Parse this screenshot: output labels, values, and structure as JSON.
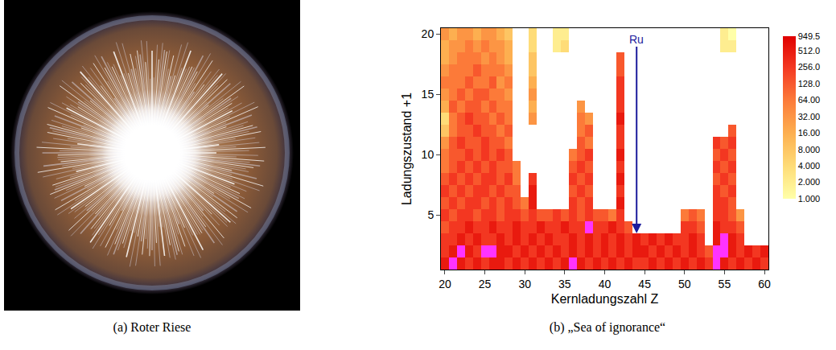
{
  "photo": {
    "caption": "(a) Roter Riese"
  },
  "chart_data": {
    "type": "heatmap",
    "caption": "(b) „Sea of ignorance“",
    "x_label": "Kernladungszahl Z",
    "y_label": "Ladungszustand +1",
    "x": [
      20,
      21,
      22,
      23,
      24,
      25,
      26,
      27,
      28,
      29,
      30,
      31,
      32,
      33,
      34,
      35,
      36,
      37,
      38,
      39,
      40,
      41,
      42,
      43,
      44,
      45,
      46,
      47,
      48,
      49,
      50,
      51,
      52,
      53,
      54,
      55,
      56,
      57,
      58,
      59,
      60
    ],
    "y": [
      1,
      2,
      3,
      4,
      5,
      6,
      7,
      8,
      9,
      10,
      11,
      12,
      13,
      14,
      15,
      16,
      17,
      18,
      19,
      20
    ],
    "cells": [
      [
        512,
        949.5,
        512,
        256,
        512,
        256,
        512,
        512,
        256,
        512,
        256,
        512,
        256,
        512,
        256,
        512,
        949.5,
        512,
        256,
        512,
        256,
        512,
        256,
        512,
        256,
        256,
        512,
        256,
        512,
        256,
        512,
        256,
        512,
        256,
        949.5,
        512,
        256,
        512,
        256,
        512,
        256
      ],
      [
        256,
        512,
        949.5,
        512,
        256,
        949.5,
        949.5,
        512,
        512,
        256,
        512,
        256,
        512,
        256,
        512,
        256,
        512,
        256,
        512,
        256,
        512,
        256,
        512,
        256,
        512,
        512,
        256,
        512,
        256,
        512,
        256,
        512,
        256,
        128,
        949.5,
        949.5,
        512,
        256,
        512,
        256,
        512
      ],
      [
        256,
        256,
        512,
        256,
        512,
        256,
        256,
        512,
        256,
        512,
        256,
        512,
        256,
        512,
        256,
        256,
        512,
        256,
        512,
        256,
        512,
        256,
        512,
        256,
        512,
        256,
        512,
        256,
        512,
        256,
        256,
        512,
        256,
        null,
        512,
        949.5,
        512,
        256,
        null,
        null,
        null
      ],
      [
        128,
        256,
        256,
        512,
        256,
        256,
        512,
        256,
        256,
        512,
        256,
        256,
        512,
        256,
        256,
        512,
        256,
        256,
        949.5,
        256,
        256,
        512,
        256,
        128,
        null,
        null,
        null,
        null,
        null,
        null,
        256,
        256,
        128,
        null,
        512,
        256,
        256,
        128,
        null,
        null,
        null
      ],
      [
        256,
        128,
        256,
        256,
        128,
        256,
        256,
        128,
        256,
        256,
        128,
        256,
        128,
        128,
        256,
        128,
        256,
        128,
        256,
        128,
        128,
        64,
        256,
        null,
        null,
        null,
        null,
        null,
        null,
        null,
        64,
        128,
        64,
        null,
        256,
        256,
        128,
        32,
        null,
        null,
        null
      ],
      [
        128,
        256,
        128,
        256,
        256,
        128,
        256,
        128,
        256,
        128,
        64,
        512,
        null,
        null,
        null,
        null,
        256,
        128,
        256,
        null,
        null,
        null,
        512,
        null,
        null,
        null,
        null,
        null,
        null,
        null,
        null,
        null,
        null,
        null,
        256,
        256,
        128,
        null,
        null,
        null,
        null
      ],
      [
        256,
        128,
        256,
        128,
        256,
        256,
        128,
        256,
        128,
        128,
        null,
        512,
        null,
        null,
        null,
        null,
        128,
        256,
        128,
        null,
        null,
        null,
        256,
        null,
        null,
        null,
        null,
        null,
        null,
        null,
        null,
        null,
        null,
        null,
        256,
        128,
        256,
        null,
        null,
        null,
        null
      ],
      [
        128,
        256,
        128,
        256,
        128,
        256,
        256,
        128,
        256,
        64,
        null,
        256,
        null,
        null,
        null,
        null,
        256,
        128,
        256,
        null,
        null,
        null,
        512,
        null,
        null,
        null,
        null,
        null,
        null,
        null,
        null,
        null,
        null,
        null,
        128,
        256,
        128,
        null,
        null,
        null,
        null
      ],
      [
        64,
        128,
        256,
        128,
        256,
        128,
        256,
        128,
        128,
        64,
        null,
        null,
        null,
        null,
        null,
        null,
        128,
        256,
        128,
        null,
        null,
        null,
        256,
        null,
        null,
        null,
        null,
        null,
        null,
        null,
        null,
        null,
        null,
        null,
        256,
        128,
        256,
        null,
        null,
        null,
        null
      ],
      [
        64,
        128,
        128,
        256,
        128,
        256,
        128,
        256,
        128,
        null,
        null,
        null,
        null,
        null,
        null,
        null,
        64,
        128,
        256,
        null,
        null,
        null,
        512,
        null,
        null,
        null,
        null,
        null,
        null,
        null,
        null,
        null,
        null,
        null,
        128,
        256,
        128,
        null,
        null,
        null,
        null
      ],
      [
        32,
        128,
        256,
        128,
        128,
        256,
        128,
        128,
        64,
        null,
        null,
        null,
        null,
        null,
        null,
        null,
        null,
        128,
        64,
        null,
        null,
        null,
        256,
        null,
        null,
        null,
        null,
        null,
        null,
        null,
        null,
        null,
        null,
        null,
        256,
        128,
        256,
        null,
        null,
        null,
        null
      ],
      [
        8,
        64,
        128,
        128,
        256,
        128,
        128,
        64,
        128,
        null,
        null,
        null,
        null,
        null,
        null,
        null,
        null,
        64,
        128,
        null,
        null,
        null,
        256,
        null,
        null,
        null,
        null,
        null,
        null,
        null,
        null,
        null,
        null,
        null,
        null,
        null,
        128,
        null,
        null,
        null,
        null
      ],
      [
        4,
        64,
        128,
        256,
        128,
        128,
        64,
        128,
        64,
        null,
        null,
        32,
        null,
        null,
        null,
        null,
        null,
        64,
        32,
        null,
        null,
        null,
        512,
        null,
        null,
        null,
        null,
        null,
        null,
        null,
        null,
        null,
        null,
        null,
        null,
        null,
        null,
        null,
        null,
        null,
        null
      ],
      [
        16,
        128,
        64,
        128,
        128,
        64,
        128,
        64,
        64,
        null,
        null,
        16,
        null,
        null,
        null,
        null,
        null,
        32,
        null,
        null,
        null,
        null,
        256,
        null,
        null,
        null,
        null,
        null,
        null,
        null,
        null,
        null,
        null,
        null,
        null,
        null,
        null,
        null,
        null,
        null,
        null
      ],
      [
        32,
        64,
        128,
        64,
        128,
        128,
        64,
        64,
        32,
        null,
        null,
        32,
        null,
        null,
        null,
        null,
        null,
        null,
        null,
        null,
        null,
        null,
        256,
        null,
        null,
        null,
        null,
        null,
        null,
        null,
        null,
        null,
        null,
        null,
        null,
        null,
        null,
        null,
        null,
        null,
        null
      ],
      [
        64,
        64,
        64,
        128,
        64,
        64,
        128,
        32,
        64,
        null,
        null,
        16,
        null,
        null,
        null,
        null,
        null,
        null,
        null,
        null,
        null,
        null,
        256,
        null,
        null,
        null,
        null,
        null,
        null,
        null,
        null,
        null,
        null,
        null,
        null,
        null,
        null,
        null,
        null,
        null,
        null
      ],
      [
        32,
        64,
        64,
        64,
        128,
        64,
        64,
        64,
        32,
        null,
        null,
        8,
        null,
        null,
        null,
        null,
        null,
        null,
        null,
        null,
        null,
        null,
        128,
        null,
        null,
        null,
        null,
        null,
        null,
        null,
        null,
        null,
        null,
        null,
        null,
        null,
        null,
        null,
        null,
        null,
        null
      ],
      [
        16,
        32,
        64,
        64,
        64,
        32,
        64,
        32,
        16,
        null,
        null,
        8,
        null,
        null,
        null,
        null,
        null,
        null,
        null,
        null,
        null,
        null,
        128,
        null,
        null,
        null,
        null,
        null,
        null,
        null,
        null,
        null,
        null,
        null,
        null,
        null,
        null,
        null,
        null,
        null,
        null
      ],
      [
        16,
        32,
        32,
        64,
        32,
        64,
        32,
        32,
        16,
        null,
        null,
        4,
        null,
        null,
        2,
        4,
        null,
        null,
        null,
        null,
        null,
        null,
        null,
        null,
        null,
        null,
        null,
        null,
        null,
        null,
        null,
        null,
        null,
        null,
        null,
        2,
        2,
        null,
        null,
        null,
        null
      ],
      [
        32,
        16,
        32,
        32,
        16,
        32,
        32,
        16,
        8,
        null,
        null,
        4,
        null,
        null,
        2,
        2,
        null,
        null,
        null,
        null,
        null,
        null,
        null,
        null,
        null,
        null,
        null,
        null,
        null,
        null,
        null,
        null,
        null,
        null,
        null,
        2,
        1,
        null,
        null,
        null,
        null
      ]
    ],
    "highlight": {
      "color": "#ff33ff",
      "cells": [
        [
          21,
          1
        ],
        [
          22,
          2
        ],
        [
          25,
          2
        ],
        [
          26,
          2
        ],
        [
          36,
          1
        ],
        [
          38,
          4
        ],
        [
          54,
          1
        ],
        [
          54,
          2
        ],
        [
          55,
          2
        ],
        [
          55,
          3
        ]
      ]
    },
    "log": true,
    "colorbar": {
      "range": [
        1,
        949.5
      ],
      "ticks": [
        {
          "value": 1,
          "label": "1.000"
        },
        {
          "value": 2,
          "label": "2.000"
        },
        {
          "value": 4,
          "label": "4.000"
        },
        {
          "value": 8,
          "label": "8.000"
        },
        {
          "value": 16,
          "label": "16.00"
        },
        {
          "value": 32,
          "label": "32.00"
        },
        {
          "value": 64,
          "label": "64.00"
        },
        {
          "value": 128,
          "label": "128.0"
        },
        {
          "value": 256,
          "label": "256.0"
        },
        {
          "value": 512,
          "label": "512.0"
        },
        949.5
      ]
    },
    "xlim": [
      19.5,
      60.5
    ],
    "xticks": [
      20,
      25,
      30,
      35,
      40,
      45,
      50,
      55,
      60
    ],
    "ylim": [
      0.5,
      20.5
    ],
    "yticks": [
      5,
      10,
      15,
      20
    ],
    "grid": false,
    "annotations": [
      {
        "text": "Ru",
        "x": 44,
        "y": 3.5,
        "color": "#1c1c9c"
      }
    ]
  }
}
